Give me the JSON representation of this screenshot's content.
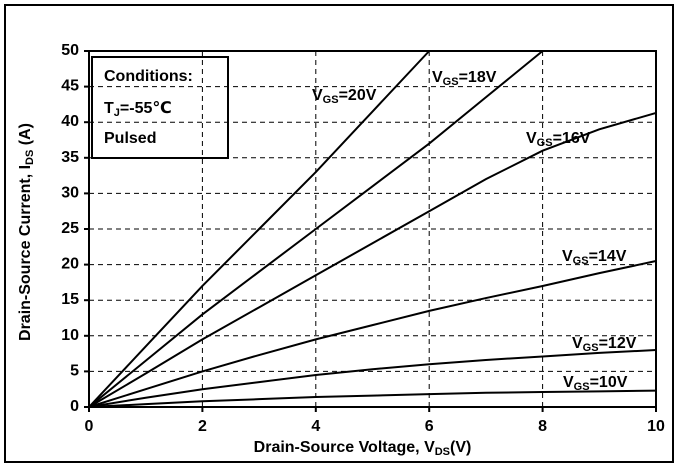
{
  "chart_data": {
    "type": "line",
    "xlabel": "Drain-Source Voltage, VDS(V)",
    "ylabel": "Drain-Source Current,  IDS (A)",
    "annotations": [
      "Conditions:",
      "TJ=-55℃",
      "Pulsed"
    ],
    "x": [
      0,
      1,
      2,
      3,
      4,
      5,
      6,
      7,
      8,
      9,
      10
    ],
    "series": [
      {
        "name": "VGS=20V",
        "color": "#000000",
        "values": [
          0,
          8.5,
          17,
          25,
          33,
          41.5,
          50,
          null,
          null,
          null,
          null
        ]
      },
      {
        "name": "VGS=18V",
        "color": "#000000",
        "values": [
          0,
          6.5,
          13,
          19,
          25,
          31,
          37,
          43.5,
          50,
          null,
          null
        ]
      },
      {
        "name": "VGS=16V",
        "color": "#000000",
        "values": [
          0,
          4.7,
          9.5,
          14,
          18.5,
          23,
          27.5,
          32,
          36,
          39,
          41.3
        ]
      },
      {
        "name": "VGS=14V",
        "color": "#000000",
        "values": [
          0,
          2.5,
          5,
          7.3,
          9.5,
          11.5,
          13.5,
          15.3,
          17,
          18.8,
          20.5
        ]
      },
      {
        "name": "VGS=12V",
        "color": "#000000",
        "values": [
          0,
          1.3,
          2.5,
          3.5,
          4.5,
          5.3,
          6,
          6.6,
          7.1,
          7.6,
          8
        ]
      },
      {
        "name": "VGS=10V",
        "color": "#000000",
        "values": [
          0,
          0.4,
          0.8,
          1.1,
          1.4,
          1.6,
          1.8,
          2,
          2.1,
          2.2,
          2.3
        ]
      }
    ],
    "xlim": [
      0,
      10
    ],
    "xticks": [
      0,
      2,
      4,
      6,
      8,
      10
    ],
    "ylim": [
      0,
      50
    ],
    "yticks": [
      0,
      5,
      10,
      15,
      20,
      25,
      30,
      35,
      40,
      45,
      50
    ],
    "grid": true
  }
}
